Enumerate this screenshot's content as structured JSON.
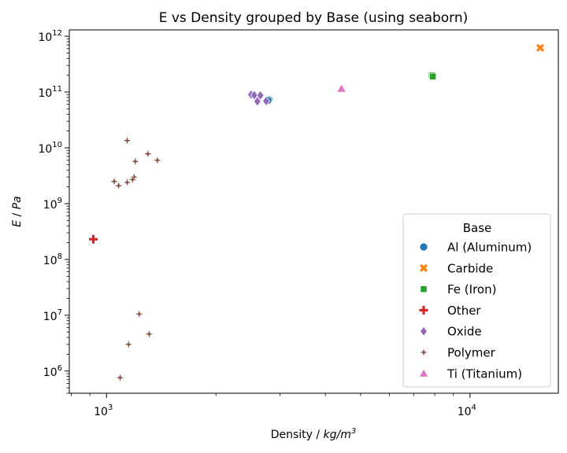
{
  "chart_data": {
    "type": "scatter",
    "title": "E vs Density grouped by Base (using seaborn)",
    "xlabel_text": "Density / ",
    "xlabel_unit_base": "kg/m",
    "xlabel_unit_exp": "3",
    "ylabel_sym_e": "E",
    "ylabel_sep": " / ",
    "ylabel_sym_pa": "Pa",
    "xscale": "log",
    "yscale": "log",
    "xlim": [
      790,
      17500
    ],
    "ylim": [
      400000,
      1300000000000
    ],
    "x_ticks": [
      {
        "value": 1000,
        "base": "10",
        "exp": "3"
      },
      {
        "value": 10000,
        "base": "10",
        "exp": "4"
      }
    ],
    "y_ticks": [
      {
        "value": 1000000,
        "base": "10",
        "exp": "6"
      },
      {
        "value": 10000000,
        "base": "10",
        "exp": "7"
      },
      {
        "value": 100000000,
        "base": "10",
        "exp": "8"
      },
      {
        "value": 1000000000,
        "base": "10",
        "exp": "9"
      },
      {
        "value": 10000000000,
        "base": "10",
        "exp": "10"
      },
      {
        "value": 100000000000,
        "base": "10",
        "exp": "11"
      },
      {
        "value": 1000000000000,
        "base": "10",
        "exp": "12"
      }
    ],
    "grid": false,
    "legend": {
      "title": "Base",
      "placement": "lower-right"
    },
    "series": [
      {
        "name": "Al (Aluminum)",
        "marker": "circle",
        "color": "#1f77b4",
        "points": [
          [
            2800,
            73000000000
          ],
          [
            2780,
            71000000000
          ]
        ]
      },
      {
        "name": "Carbide",
        "marker": "x",
        "color": "#ff7f0e",
        "points": [
          [
            15600,
            620000000000
          ]
        ]
      },
      {
        "name": "Fe (Iron)",
        "marker": "square",
        "color": "#2ca02c",
        "points": [
          [
            7850,
            200000000000
          ],
          [
            7900,
            190000000000
          ]
        ]
      },
      {
        "name": "Other",
        "marker": "plus",
        "color": "#d62728",
        "points": [
          [
            920,
            230000000
          ]
        ]
      },
      {
        "name": "Oxide",
        "marker": "diamond",
        "color": "#9467bd",
        "points": [
          [
            2500,
            90000000000
          ],
          [
            2550,
            88000000000
          ],
          [
            2650,
            87000000000
          ],
          [
            2600,
            68000000000
          ],
          [
            2750,
            69000000000
          ]
        ]
      },
      {
        "name": "Polymer",
        "marker": "star",
        "color": "#8c564b",
        "points": [
          [
            1140,
            13500000000
          ],
          [
            1300,
            7800000000
          ],
          [
            1380,
            6000000000
          ],
          [
            1200,
            5700000000
          ],
          [
            1190,
            3000000000
          ],
          [
            1180,
            2700000000
          ],
          [
            1050,
            2500000000
          ],
          [
            1140,
            2400000000
          ],
          [
            1080,
            2100000000
          ],
          [
            1230,
            10500000
          ],
          [
            1310,
            4600000
          ],
          [
            1150,
            3000000
          ],
          [
            1090,
            760000
          ]
        ]
      },
      {
        "name": "Ti (Titanium)",
        "marker": "triangle",
        "color": "#e377c2",
        "points": [
          [
            4430,
            115000000000
          ]
        ]
      }
    ]
  }
}
